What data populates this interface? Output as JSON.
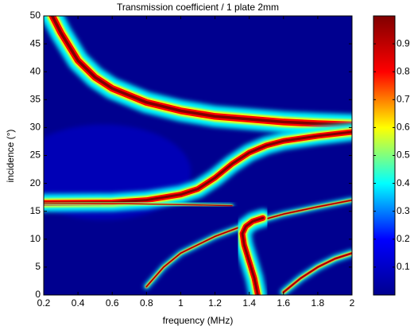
{
  "chart_data": {
    "type": "ridgemap",
    "title": "Transmission coefficient / 1 plate 2mm",
    "xlabel": "frequency (MHz)",
    "ylabel": "incidence (°)",
    "xlim": [
      0.2,
      2
    ],
    "xticks": [
      0.2,
      0.4,
      0.6,
      0.8,
      1,
      1.2,
      1.4,
      1.6,
      1.8,
      2
    ],
    "ylim": [
      0,
      50
    ],
    "yticks": [
      0,
      5,
      10,
      15,
      20,
      25,
      30,
      35,
      40,
      45,
      50
    ],
    "clim": [
      0,
      1
    ],
    "cticks": [
      0.1,
      0.2,
      0.3,
      0.4,
      0.5,
      0.6,
      0.7,
      0.8,
      0.9
    ],
    "colormap": [
      "#00008f",
      "#0000ff",
      "#00ffff",
      "#ffff00",
      "#ff0000",
      "#800000"
    ],
    "ridges": [
      {
        "x": [
          0.25,
          0.3,
          0.4,
          0.5,
          0.6,
          0.8,
          1.0,
          1.2,
          1.4,
          1.6,
          1.8,
          2.0
        ],
        "y": [
          50,
          47,
          42,
          39,
          37,
          34.5,
          33,
          32,
          31.5,
          31,
          30.7,
          30.5
        ]
      },
      {
        "x": [
          0.2,
          0.6,
          0.8,
          1.0,
          1.1,
          1.2,
          1.3,
          1.4,
          1.5,
          1.6,
          1.8,
          2.0
        ],
        "y": [
          16.5,
          16.6,
          17,
          18,
          19,
          21,
          23.5,
          25.5,
          26.8,
          27.6,
          28.5,
          29.2
        ]
      },
      {
        "x": [
          0.8,
          0.9,
          1.0,
          1.2,
          1.4,
          1.6,
          1.8,
          2.0
        ],
        "y": [
          1.5,
          5,
          7.5,
          10.5,
          12.8,
          14.5,
          15.8,
          17
        ]
      },
      {
        "x": [
          1.45,
          1.43,
          1.4,
          1.37,
          1.36,
          1.38,
          1.42,
          1.48
        ],
        "y": [
          0,
          3,
          6,
          9,
          11,
          12.3,
          13.2,
          13.8
        ]
      },
      {
        "x": [
          1.6,
          1.7,
          1.8,
          1.9,
          2.0
        ],
        "y": [
          0.5,
          3,
          5,
          6.5,
          7.5
        ]
      },
      {
        "x": [
          0.2,
          0.6,
          1.0,
          1.3
        ],
        "y": [
          16.5,
          16.4,
          16.2,
          16
        ]
      }
    ]
  }
}
